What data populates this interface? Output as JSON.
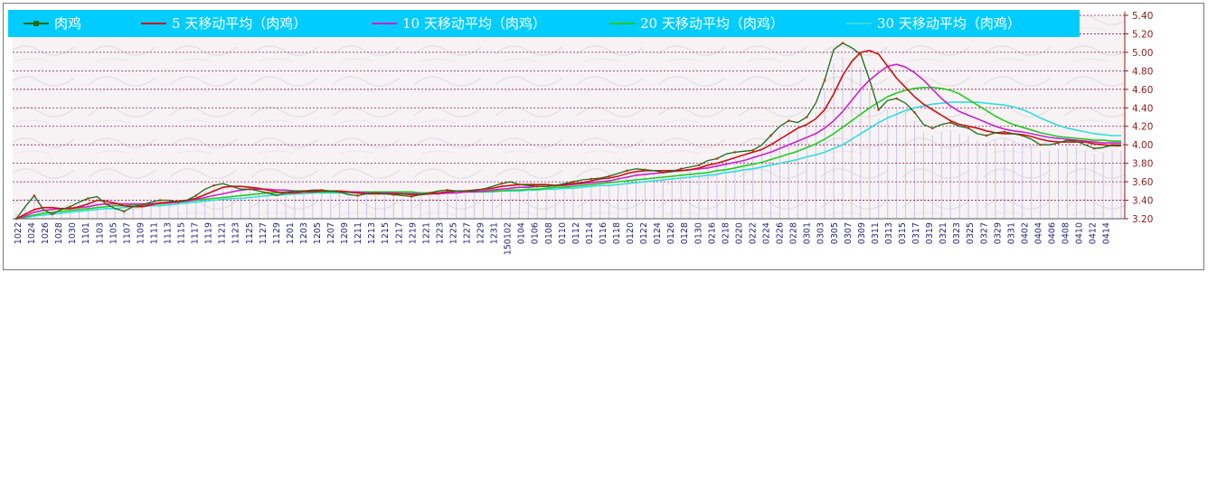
{
  "chart_data": {
    "type": "line",
    "title": "",
    "xlabel": "",
    "ylabel": "",
    "ylim": [
      3.2,
      5.4
    ],
    "yticks": [
      "3.20",
      "3.40",
      "3.60",
      "3.80",
      "4.00",
      "4.20",
      "4.40",
      "4.60",
      "4.80",
      "5.00",
      "5.20",
      "5.40"
    ],
    "x_tick_labels": [
      "1022",
      "1024",
      "1026",
      "1028",
      "1030",
      "1101",
      "1103",
      "1105",
      "1107",
      "1109",
      "1111",
      "1113",
      "1115",
      "1117",
      "1119",
      "1121",
      "1123",
      "1125",
      "1127",
      "1129",
      "1201",
      "1203",
      "1205",
      "1207",
      "1209",
      "1211",
      "1213",
      "1215",
      "1217",
      "1219",
      "1221",
      "1223",
      "1225",
      "1227",
      "1229",
      "1231",
      "150102",
      "0104",
      "0106",
      "0108",
      "0110",
      "0112",
      "0114",
      "0116",
      "0118",
      "0120",
      "0122",
      "0124",
      "0126",
      "0128",
      "0130",
      "0216",
      "0218",
      "0220",
      "0222",
      "0224",
      "0226",
      "0228",
      "0301",
      "0303",
      "0305",
      "0307",
      "0309",
      "0311",
      "0313",
      "0315",
      "0317",
      "0319",
      "0321",
      "0323",
      "0325",
      "0327",
      "0329",
      "0331",
      "0402",
      "0404",
      "0406",
      "0408",
      "0410",
      "0412",
      "0414"
    ],
    "grid": true,
    "legend_position": "top",
    "series": [
      {
        "name": "肉鸡",
        "color": "#1a6b1a",
        "values": [
          3.2,
          3.33,
          3.45,
          3.3,
          3.25,
          3.3,
          3.33,
          3.38,
          3.42,
          3.44,
          3.36,
          3.31,
          3.28,
          3.33,
          3.35,
          3.38,
          3.4,
          3.4,
          3.38,
          3.4,
          3.45,
          3.52,
          3.56,
          3.58,
          3.55,
          3.52,
          3.52,
          3.5,
          3.48,
          3.45,
          3.48,
          3.5,
          3.5,
          3.51,
          3.51,
          3.5,
          3.49,
          3.46,
          3.45,
          3.47,
          3.48,
          3.47,
          3.46,
          3.45,
          3.44,
          3.46,
          3.48,
          3.5,
          3.51,
          3.5,
          3.5,
          3.5,
          3.52,
          3.55,
          3.58,
          3.6,
          3.57,
          3.56,
          3.55,
          3.55,
          3.56,
          3.58,
          3.6,
          3.62,
          3.63,
          3.64,
          3.66,
          3.69,
          3.72,
          3.74,
          3.73,
          3.72,
          3.7,
          3.71,
          3.74,
          3.76,
          3.78,
          3.83,
          3.85,
          3.9,
          3.92,
          3.93,
          3.94,
          4.0,
          4.1,
          4.2,
          4.26,
          4.24,
          4.3,
          4.45,
          4.7,
          5.03,
          5.1,
          5.05,
          4.98,
          4.7,
          4.38,
          4.48,
          4.5,
          4.45,
          4.35,
          4.22,
          4.18,
          4.22,
          4.24,
          4.2,
          4.18,
          4.12,
          4.1,
          4.13,
          4.14,
          4.12,
          4.1,
          4.06,
          4.0,
          4.0,
          4.02,
          4.05,
          4.04,
          4.0,
          3.96,
          3.97,
          4.0,
          4.0
        ]
      },
      {
        "name": "5 天移动平均（肉鸡）",
        "color": "#cc1111",
        "values": [
          3.2,
          3.25,
          3.3,
          3.32,
          3.32,
          3.31,
          3.31,
          3.33,
          3.36,
          3.4,
          3.39,
          3.37,
          3.34,
          3.33,
          3.33,
          3.35,
          3.37,
          3.38,
          3.39,
          3.4,
          3.42,
          3.46,
          3.5,
          3.54,
          3.55,
          3.55,
          3.54,
          3.53,
          3.51,
          3.49,
          3.48,
          3.48,
          3.49,
          3.49,
          3.5,
          3.5,
          3.5,
          3.49,
          3.48,
          3.47,
          3.47,
          3.47,
          3.47,
          3.47,
          3.46,
          3.46,
          3.47,
          3.48,
          3.49,
          3.5,
          3.5,
          3.51,
          3.52,
          3.53,
          3.55,
          3.56,
          3.57,
          3.57,
          3.57,
          3.57,
          3.56,
          3.57,
          3.58,
          3.59,
          3.61,
          3.63,
          3.64,
          3.66,
          3.69,
          3.71,
          3.72,
          3.72,
          3.72,
          3.72,
          3.72,
          3.73,
          3.75,
          3.78,
          3.8,
          3.83,
          3.86,
          3.89,
          3.92,
          3.95,
          4.0,
          4.06,
          4.12,
          4.18,
          4.22,
          4.28,
          4.38,
          4.55,
          4.75,
          4.9,
          5.0,
          5.02,
          4.98,
          4.85,
          4.72,
          4.62,
          4.52,
          4.44,
          4.38,
          4.32,
          4.26,
          4.22,
          4.2,
          4.18,
          4.15,
          4.13,
          4.12,
          4.12,
          4.11,
          4.09,
          4.06,
          4.04,
          4.03,
          4.03,
          4.03,
          4.03,
          4.01,
          4.0,
          3.99,
          3.99
        ]
      },
      {
        "name": "10 天移动平均（肉鸡）",
        "color": "#cc22cc",
        "values": [
          3.2,
          3.23,
          3.27,
          3.29,
          3.3,
          3.31,
          3.31,
          3.32,
          3.33,
          3.35,
          3.36,
          3.36,
          3.36,
          3.36,
          3.36,
          3.36,
          3.37,
          3.37,
          3.38,
          3.39,
          3.41,
          3.43,
          3.45,
          3.47,
          3.49,
          3.51,
          3.52,
          3.52,
          3.52,
          3.51,
          3.51,
          3.5,
          3.5,
          3.5,
          3.5,
          3.5,
          3.5,
          3.49,
          3.49,
          3.48,
          3.48,
          3.48,
          3.48,
          3.47,
          3.47,
          3.47,
          3.47,
          3.47,
          3.48,
          3.48,
          3.49,
          3.49,
          3.5,
          3.51,
          3.52,
          3.53,
          3.54,
          3.54,
          3.55,
          3.55,
          3.56,
          3.56,
          3.57,
          3.58,
          3.59,
          3.6,
          3.61,
          3.63,
          3.65,
          3.67,
          3.68,
          3.69,
          3.7,
          3.71,
          3.72,
          3.73,
          3.74,
          3.75,
          3.77,
          3.79,
          3.81,
          3.83,
          3.86,
          3.89,
          3.92,
          3.96,
          4.0,
          4.04,
          4.08,
          4.12,
          4.18,
          4.26,
          4.36,
          4.48,
          4.6,
          4.7,
          4.78,
          4.85,
          4.87,
          4.84,
          4.78,
          4.7,
          4.6,
          4.5,
          4.42,
          4.36,
          4.32,
          4.28,
          4.24,
          4.2,
          4.17,
          4.15,
          4.14,
          4.12,
          4.1,
          4.08,
          4.07,
          4.06,
          4.05,
          4.04,
          4.03,
          4.02,
          4.02,
          4.02
        ]
      },
      {
        "name": "20 天移动平均（肉鸡）",
        "color": "#22cc22",
        "values": [
          3.2,
          3.22,
          3.24,
          3.26,
          3.27,
          3.28,
          3.29,
          3.3,
          3.31,
          3.32,
          3.33,
          3.34,
          3.34,
          3.35,
          3.35,
          3.36,
          3.36,
          3.37,
          3.38,
          3.39,
          3.4,
          3.41,
          3.42,
          3.43,
          3.44,
          3.45,
          3.46,
          3.47,
          3.48,
          3.48,
          3.49,
          3.49,
          3.49,
          3.49,
          3.49,
          3.49,
          3.49,
          3.49,
          3.49,
          3.49,
          3.49,
          3.49,
          3.49,
          3.49,
          3.49,
          3.48,
          3.48,
          3.48,
          3.48,
          3.48,
          3.49,
          3.49,
          3.49,
          3.5,
          3.5,
          3.51,
          3.51,
          3.52,
          3.52,
          3.53,
          3.54,
          3.54,
          3.55,
          3.56,
          3.57,
          3.58,
          3.59,
          3.6,
          3.61,
          3.62,
          3.63,
          3.64,
          3.65,
          3.66,
          3.67,
          3.68,
          3.69,
          3.7,
          3.72,
          3.73,
          3.75,
          3.77,
          3.79,
          3.81,
          3.84,
          3.87,
          3.9,
          3.93,
          3.97,
          4.01,
          4.06,
          4.12,
          4.19,
          4.26,
          4.33,
          4.4,
          4.46,
          4.52,
          4.56,
          4.59,
          4.61,
          4.62,
          4.62,
          4.61,
          4.59,
          4.55,
          4.49,
          4.43,
          4.37,
          4.31,
          4.26,
          4.22,
          4.19,
          4.16,
          4.13,
          4.11,
          4.09,
          4.08,
          4.07,
          4.06,
          4.05,
          4.05,
          4.04,
          4.04
        ]
      },
      {
        "name": "30 天移动平均（肉鸡）",
        "color": "#33dddd",
        "values": [
          3.2,
          3.21,
          3.23,
          3.24,
          3.25,
          3.26,
          3.27,
          3.28,
          3.29,
          3.3,
          3.31,
          3.31,
          3.32,
          3.33,
          3.33,
          3.34,
          3.34,
          3.35,
          3.36,
          3.37,
          3.38,
          3.39,
          3.4,
          3.41,
          3.42,
          3.42,
          3.43,
          3.44,
          3.45,
          3.46,
          3.46,
          3.47,
          3.47,
          3.48,
          3.48,
          3.48,
          3.48,
          3.48,
          3.48,
          3.48,
          3.48,
          3.48,
          3.48,
          3.48,
          3.48,
          3.48,
          3.48,
          3.48,
          3.48,
          3.48,
          3.49,
          3.49,
          3.49,
          3.49,
          3.5,
          3.5,
          3.5,
          3.51,
          3.51,
          3.52,
          3.52,
          3.53,
          3.53,
          3.54,
          3.55,
          3.56,
          3.56,
          3.57,
          3.58,
          3.59,
          3.6,
          3.61,
          3.62,
          3.63,
          3.64,
          3.65,
          3.66,
          3.67,
          3.68,
          3.7,
          3.71,
          3.73,
          3.74,
          3.76,
          3.78,
          3.8,
          3.82,
          3.84,
          3.87,
          3.89,
          3.92,
          3.96,
          4.0,
          4.06,
          4.12,
          4.18,
          4.24,
          4.29,
          4.33,
          4.37,
          4.4,
          4.42,
          4.44,
          4.45,
          4.46,
          4.46,
          4.46,
          4.46,
          4.45,
          4.44,
          4.43,
          4.41,
          4.38,
          4.34,
          4.29,
          4.25,
          4.21,
          4.18,
          4.16,
          4.14,
          4.12,
          4.11,
          4.1,
          4.1
        ]
      }
    ]
  }
}
